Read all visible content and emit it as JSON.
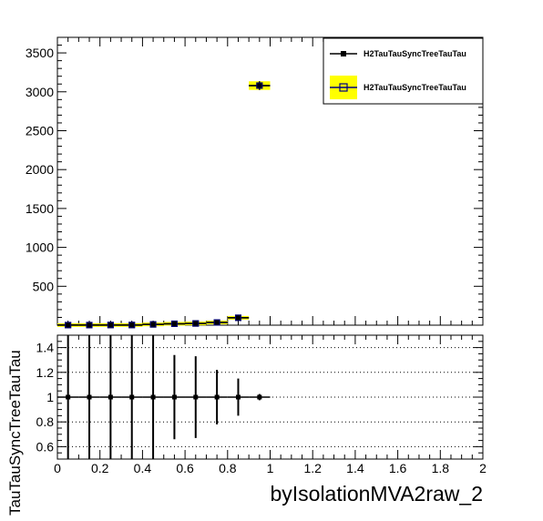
{
  "chart_data": [
    {
      "type": "scatter",
      "panel": "main",
      "title": "",
      "xlabel": "",
      "ylabel": "",
      "xlim": [
        0,
        2
      ],
      "ylim": [
        0,
        3700
      ],
      "x_ticks": [
        0,
        0.2,
        0.4,
        0.6,
        0.8,
        1,
        1.2,
        1.4,
        1.6,
        1.8,
        2
      ],
      "y_ticks": [
        500,
        1000,
        1500,
        2000,
        2500,
        3000,
        3500
      ],
      "y_tick_labels": [
        "500",
        "1000",
        "1500",
        "2000",
        "2500",
        "3000",
        "3500"
      ],
      "bin_width": 0.1,
      "legend_position": "top-right",
      "grid": false,
      "series": [
        {
          "name": "H2TauTauSyncTreeTauTau",
          "style": "markers-with-errors",
          "color": "#000000",
          "x": [
            0.05,
            0.15,
            0.25,
            0.35,
            0.45,
            0.55,
            0.65,
            0.75,
            0.85,
            0.95
          ],
          "y": [
            1,
            1,
            2,
            2,
            10,
            18,
            22,
            35,
            95,
            3080
          ]
        },
        {
          "name": "H2TauTauSyncTreeTauTau",
          "style": "boxes",
          "color": "#000080",
          "fill": "#ffff00",
          "x": [
            0.05,
            0.15,
            0.25,
            0.35,
            0.45,
            0.55,
            0.65,
            0.75,
            0.85,
            0.95
          ],
          "y": [
            1,
            1,
            2,
            2,
            10,
            18,
            22,
            35,
            95,
            3080
          ]
        }
      ]
    },
    {
      "type": "scatter",
      "panel": "ratio",
      "title": "",
      "xlabel": "byIsolationMVA2raw_2",
      "ylabel": "TauTauSyncTreeTauTau",
      "xlim": [
        0,
        2
      ],
      "ylim": [
        0.5,
        1.5
      ],
      "x_ticks": [
        0,
        0.2,
        0.4,
        0.6,
        0.8,
        1,
        1.2,
        1.4,
        1.6,
        1.8,
        2
      ],
      "x_tick_labels": [
        "0",
        "0.2",
        "0.4",
        "0.6",
        "0.8",
        "1",
        "1.2",
        "1.4",
        "1.6",
        "1.8",
        "2"
      ],
      "y_ticks": [
        0.6,
        0.8,
        1,
        1.2,
        1.4
      ],
      "y_tick_labels": [
        "0.6",
        "0.8",
        "1",
        "1.2",
        "1.4"
      ],
      "grid": true,
      "series": [
        {
          "name": "",
          "color": "#000000",
          "x": [
            0.05,
            0.15,
            0.25,
            0.35,
            0.45,
            0.55,
            0.65,
            0.75,
            0.85,
            0.95
          ],
          "y": [
            1,
            1,
            1,
            1,
            1,
            1,
            1,
            1,
            1,
            1
          ],
          "err": [
            1.2,
            1.2,
            1.2,
            1.2,
            1.2,
            0.34,
            0.33,
            0.22,
            0.15,
            0.025
          ]
        }
      ]
    }
  ]
}
